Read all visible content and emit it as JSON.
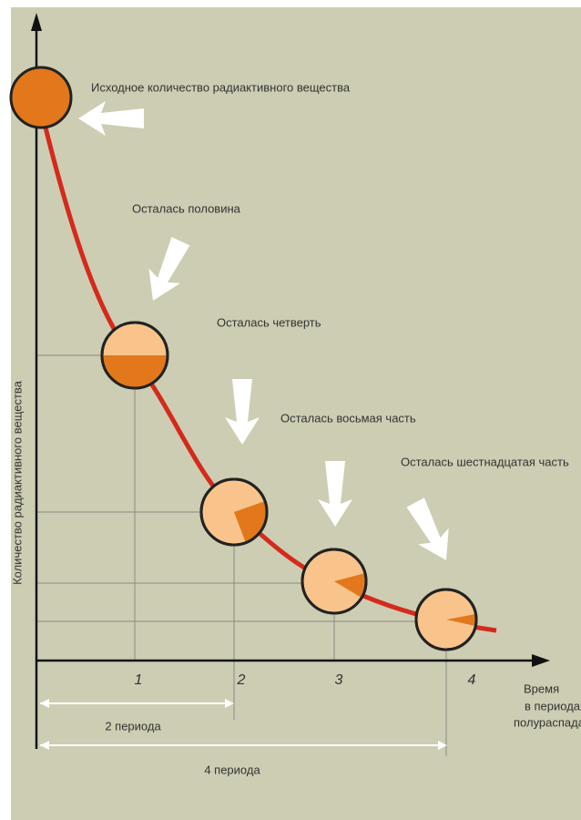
{
  "diagram": {
    "y_axis_label": "Количество радиактивного вещества",
    "stages": [
      {
        "label": "Исходное количество радиактивного вещества"
      },
      {
        "label": "Осталась половина"
      },
      {
        "label": "Осталась четверть"
      },
      {
        "label": "Осталась восьмая часть"
      },
      {
        "label": "Осталась шестнадцатая часть"
      }
    ],
    "x_ticks": [
      "1",
      "2",
      "3",
      "4"
    ],
    "x_axis_label": [
      "Время",
      "в периодах",
      "полураспада"
    ],
    "spans": [
      "2 периода",
      "4 периода"
    ]
  }
}
